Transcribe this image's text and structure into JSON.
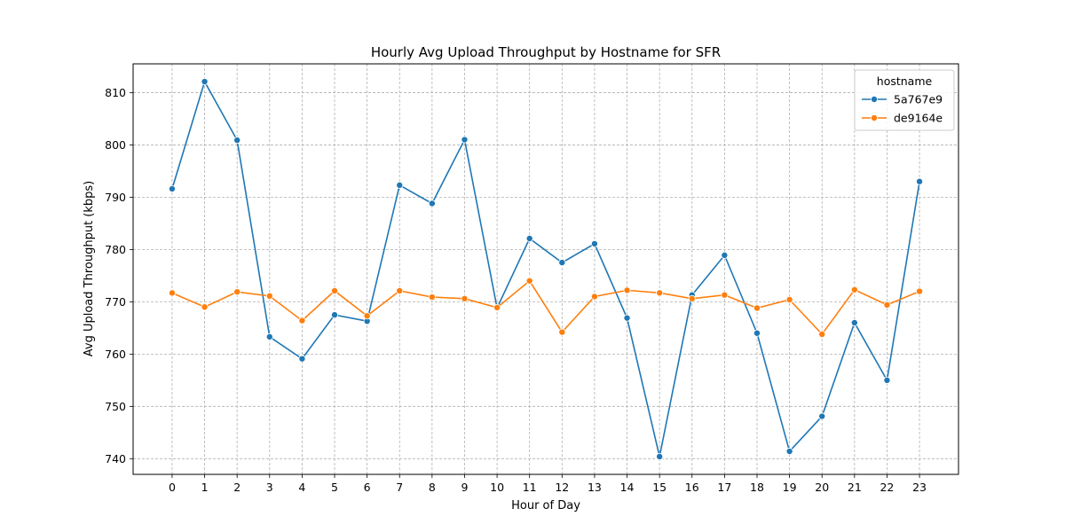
{
  "chart_data": {
    "type": "line",
    "title": "Hourly Avg Upload Throughput by Hostname for SFR",
    "xlabel": "Hour of Day",
    "ylabel": "Avg Upload Throughput (kbps)",
    "x": [
      0,
      1,
      2,
      3,
      4,
      5,
      6,
      7,
      8,
      9,
      10,
      11,
      12,
      13,
      14,
      15,
      16,
      17,
      18,
      19,
      20,
      21,
      22,
      23
    ],
    "xlim": [
      -1.2,
      24.2
    ],
    "ylim": [
      737,
      815.5
    ],
    "yticks": [
      740,
      750,
      760,
      770,
      780,
      790,
      800,
      810
    ],
    "grid": true,
    "legend": {
      "title": "hostname",
      "placement": "top-right"
    },
    "series": [
      {
        "name": "5a767e9",
        "color": "#1f77b4",
        "values": [
          791.6,
          812.1,
          800.9,
          763.3,
          759.1,
          767.5,
          766.3,
          792.3,
          788.8,
          801.0,
          768.8,
          782.1,
          777.5,
          781.1,
          766.9,
          740.4,
          771.3,
          778.9,
          764.0,
          741.4,
          748.1,
          766.0,
          755.0,
          793.0
        ]
      },
      {
        "name": "de9164e",
        "color": "#ff7f0e",
        "values": [
          771.7,
          769.0,
          771.9,
          771.1,
          766.4,
          772.1,
          767.3,
          772.1,
          770.9,
          770.6,
          768.9,
          774.0,
          764.2,
          771.0,
          772.2,
          771.7,
          770.6,
          771.3,
          768.8,
          770.4,
          763.8,
          772.3,
          769.4,
          772.0
        ]
      }
    ]
  }
}
